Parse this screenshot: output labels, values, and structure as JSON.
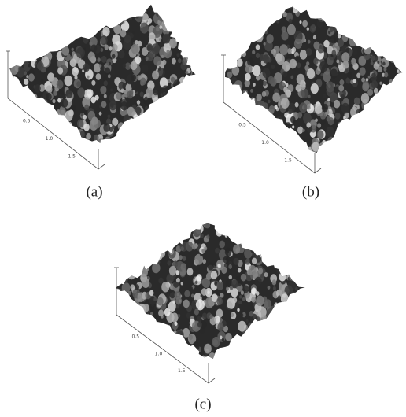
{
  "panels": [
    {
      "label": "(a)",
      "axis_ticks": [
        "0.5",
        "1.0",
        "1.5"
      ]
    },
    {
      "label": "(b)",
      "axis_ticks": [
        "0.5",
        "1.0",
        "1.5"
      ]
    },
    {
      "label": "(c)",
      "axis_ticks": [
        "0.5",
        "1.0",
        "1.5"
      ]
    }
  ]
}
